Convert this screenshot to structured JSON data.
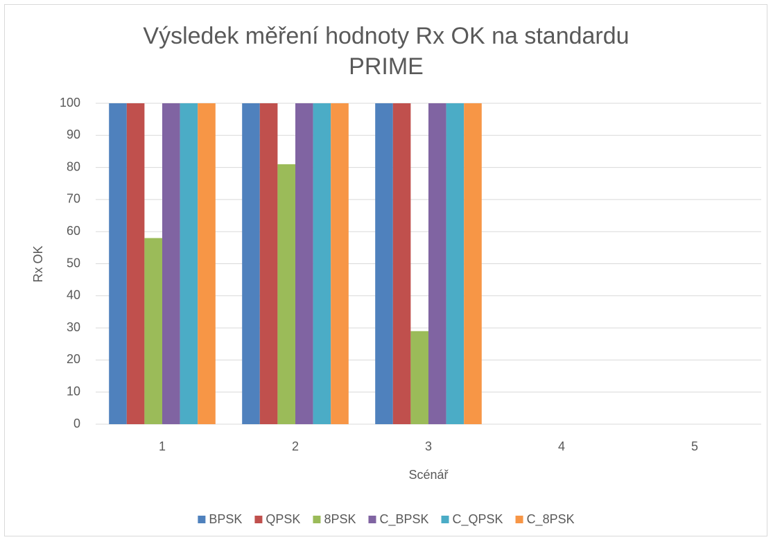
{
  "chart_data": {
    "type": "bar",
    "title": "Výsledek měření hodnoty Rx OK na standardu PRIME",
    "x_label": "Scénář",
    "y_label": "Rx OK",
    "categories": [
      "1",
      "2",
      "3",
      "4",
      "5"
    ],
    "series": [
      {
        "name": "BPSK",
        "color": "#4f81bd",
        "values": [
          100,
          100,
          100,
          null,
          null
        ]
      },
      {
        "name": "QPSK",
        "color": "#c0504d",
        "values": [
          100,
          100,
          100,
          null,
          null
        ]
      },
      {
        "name": "8PSK",
        "color": "#9bbb59",
        "values": [
          58,
          81,
          29,
          null,
          null
        ]
      },
      {
        "name": "C_BPSK",
        "color": "#8064a2",
        "values": [
          100,
          100,
          100,
          null,
          null
        ]
      },
      {
        "name": "C_QPSK",
        "color": "#4bacc6",
        "values": [
          100,
          100,
          100,
          null,
          null
        ]
      },
      {
        "name": "C_8PSK",
        "color": "#f79646",
        "values": [
          100,
          100,
          100,
          null,
          null
        ]
      }
    ],
    "ylim": [
      0,
      100
    ],
    "yticks": [
      0,
      10,
      20,
      30,
      40,
      50,
      60,
      70,
      80,
      90,
      100
    ],
    "grid": true,
    "legend": "bottom"
  }
}
